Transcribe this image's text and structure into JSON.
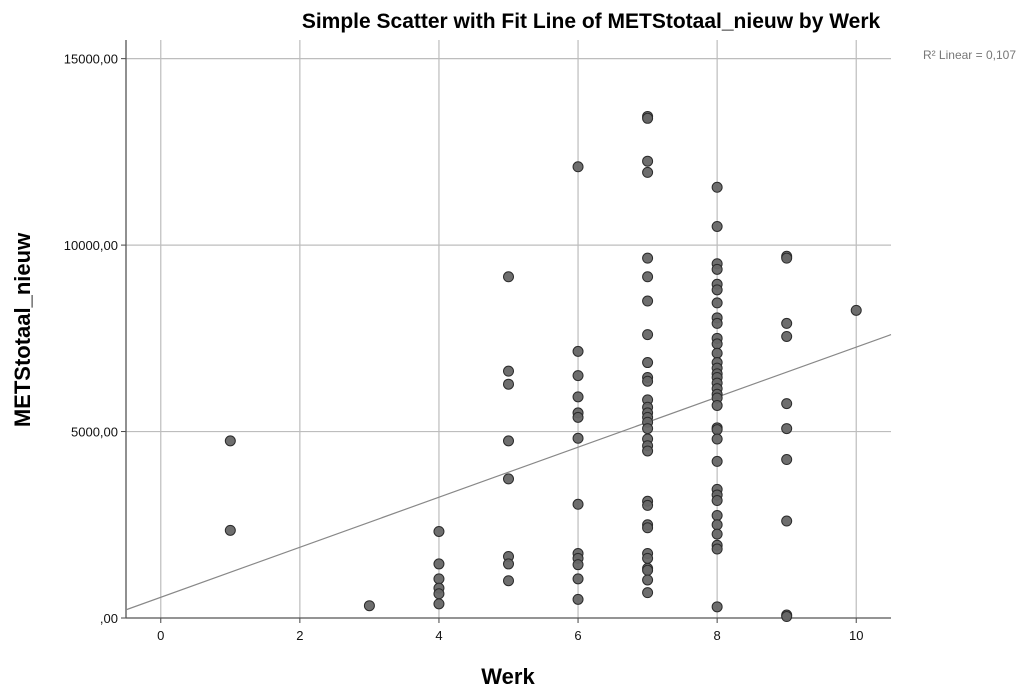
{
  "chart_data": {
    "type": "scatter",
    "title": "Simple Scatter with Fit Line of METStotaal_nieuw by Werk",
    "xlabel": "Werk",
    "ylabel": "METStotaal_nieuw",
    "xlim": [
      -0.5,
      10.5
    ],
    "ylim": [
      0,
      15500
    ],
    "x_ticks": [
      0,
      2,
      4,
      6,
      8,
      10
    ],
    "x_tick_labels": [
      "0",
      "2",
      "4",
      "6",
      "8",
      "10"
    ],
    "y_ticks": [
      0,
      5000,
      10000,
      15000
    ],
    "y_tick_labels": [
      ",00",
      "5000,00",
      "10000,00",
      "15000,00"
    ],
    "grid": true,
    "marker_color": "#666666",
    "fit_line": {
      "type": "linear",
      "x": [
        -0.5,
        10.5
      ],
      "y": [
        220,
        7600
      ],
      "color": "#888888"
    },
    "annotation": "R² Linear = 0,107",
    "points": [
      {
        "x": 1,
        "y": 4750
      },
      {
        "x": 1,
        "y": 2350
      },
      {
        "x": 3,
        "y": 330
      },
      {
        "x": 4,
        "y": 2320
      },
      {
        "x": 4,
        "y": 1450
      },
      {
        "x": 4,
        "y": 1050
      },
      {
        "x": 4,
        "y": 800
      },
      {
        "x": 4,
        "y": 650
      },
      {
        "x": 4,
        "y": 380
      },
      {
        "x": 5,
        "y": 9150
      },
      {
        "x": 5,
        "y": 6620
      },
      {
        "x": 5,
        "y": 6270
      },
      {
        "x": 5,
        "y": 4750
      },
      {
        "x": 5,
        "y": 3730
      },
      {
        "x": 5,
        "y": 1650
      },
      {
        "x": 5,
        "y": 1450
      },
      {
        "x": 5,
        "y": 1000
      },
      {
        "x": 6,
        "y": 12100
      },
      {
        "x": 6,
        "y": 7150
      },
      {
        "x": 6,
        "y": 6500
      },
      {
        "x": 6,
        "y": 5930
      },
      {
        "x": 6,
        "y": 5500
      },
      {
        "x": 6,
        "y": 5380
      },
      {
        "x": 6,
        "y": 4820
      },
      {
        "x": 6,
        "y": 3050
      },
      {
        "x": 6,
        "y": 1730
      },
      {
        "x": 6,
        "y": 1600
      },
      {
        "x": 6,
        "y": 1430
      },
      {
        "x": 6,
        "y": 1050
      },
      {
        "x": 6,
        "y": 500
      },
      {
        "x": 7,
        "y": 13450
      },
      {
        "x": 7,
        "y": 13400
      },
      {
        "x": 7,
        "y": 12250
      },
      {
        "x": 7,
        "y": 11950
      },
      {
        "x": 7,
        "y": 9650
      },
      {
        "x": 7,
        "y": 9150
      },
      {
        "x": 7,
        "y": 8500
      },
      {
        "x": 7,
        "y": 7600
      },
      {
        "x": 7,
        "y": 6850
      },
      {
        "x": 7,
        "y": 6450
      },
      {
        "x": 7,
        "y": 6350
      },
      {
        "x": 7,
        "y": 5850
      },
      {
        "x": 7,
        "y": 5650
      },
      {
        "x": 7,
        "y": 5500
      },
      {
        "x": 7,
        "y": 5380
      },
      {
        "x": 7,
        "y": 5250
      },
      {
        "x": 7,
        "y": 5080
      },
      {
        "x": 7,
        "y": 4800
      },
      {
        "x": 7,
        "y": 4620
      },
      {
        "x": 7,
        "y": 4480
      },
      {
        "x": 7,
        "y": 3130
      },
      {
        "x": 7,
        "y": 3020
      },
      {
        "x": 7,
        "y": 2500
      },
      {
        "x": 7,
        "y": 2420
      },
      {
        "x": 7,
        "y": 1730
      },
      {
        "x": 7,
        "y": 1600
      },
      {
        "x": 7,
        "y": 1330
      },
      {
        "x": 7,
        "y": 1280
      },
      {
        "x": 7,
        "y": 1020
      },
      {
        "x": 7,
        "y": 680
      },
      {
        "x": 8,
        "y": 11550
      },
      {
        "x": 8,
        "y": 10500
      },
      {
        "x": 8,
        "y": 9500
      },
      {
        "x": 8,
        "y": 9350
      },
      {
        "x": 8,
        "y": 8950
      },
      {
        "x": 8,
        "y": 8800
      },
      {
        "x": 8,
        "y": 8450
      },
      {
        "x": 8,
        "y": 8050
      },
      {
        "x": 8,
        "y": 7900
      },
      {
        "x": 8,
        "y": 7500
      },
      {
        "x": 8,
        "y": 7350
      },
      {
        "x": 8,
        "y": 7100
      },
      {
        "x": 8,
        "y": 6850
      },
      {
        "x": 8,
        "y": 6700
      },
      {
        "x": 8,
        "y": 6550
      },
      {
        "x": 8,
        "y": 6450
      },
      {
        "x": 8,
        "y": 6300
      },
      {
        "x": 8,
        "y": 6150
      },
      {
        "x": 8,
        "y": 6000
      },
      {
        "x": 8,
        "y": 5900
      },
      {
        "x": 8,
        "y": 5700
      },
      {
        "x": 8,
        "y": 5100
      },
      {
        "x": 8,
        "y": 5050
      },
      {
        "x": 8,
        "y": 4800
      },
      {
        "x": 8,
        "y": 4200
      },
      {
        "x": 8,
        "y": 3450
      },
      {
        "x": 8,
        "y": 3300
      },
      {
        "x": 8,
        "y": 3150
      },
      {
        "x": 8,
        "y": 2750
      },
      {
        "x": 8,
        "y": 2500
      },
      {
        "x": 8,
        "y": 2250
      },
      {
        "x": 8,
        "y": 1950
      },
      {
        "x": 8,
        "y": 1850
      },
      {
        "x": 8,
        "y": 300
      },
      {
        "x": 9,
        "y": 9700
      },
      {
        "x": 9,
        "y": 9650
      },
      {
        "x": 9,
        "y": 7900
      },
      {
        "x": 9,
        "y": 7550
      },
      {
        "x": 9,
        "y": 5750
      },
      {
        "x": 9,
        "y": 5080
      },
      {
        "x": 9,
        "y": 4250
      },
      {
        "x": 9,
        "y": 2600
      },
      {
        "x": 9,
        "y": 80
      },
      {
        "x": 9,
        "y": 40
      },
      {
        "x": 10,
        "y": 8250
      }
    ]
  }
}
